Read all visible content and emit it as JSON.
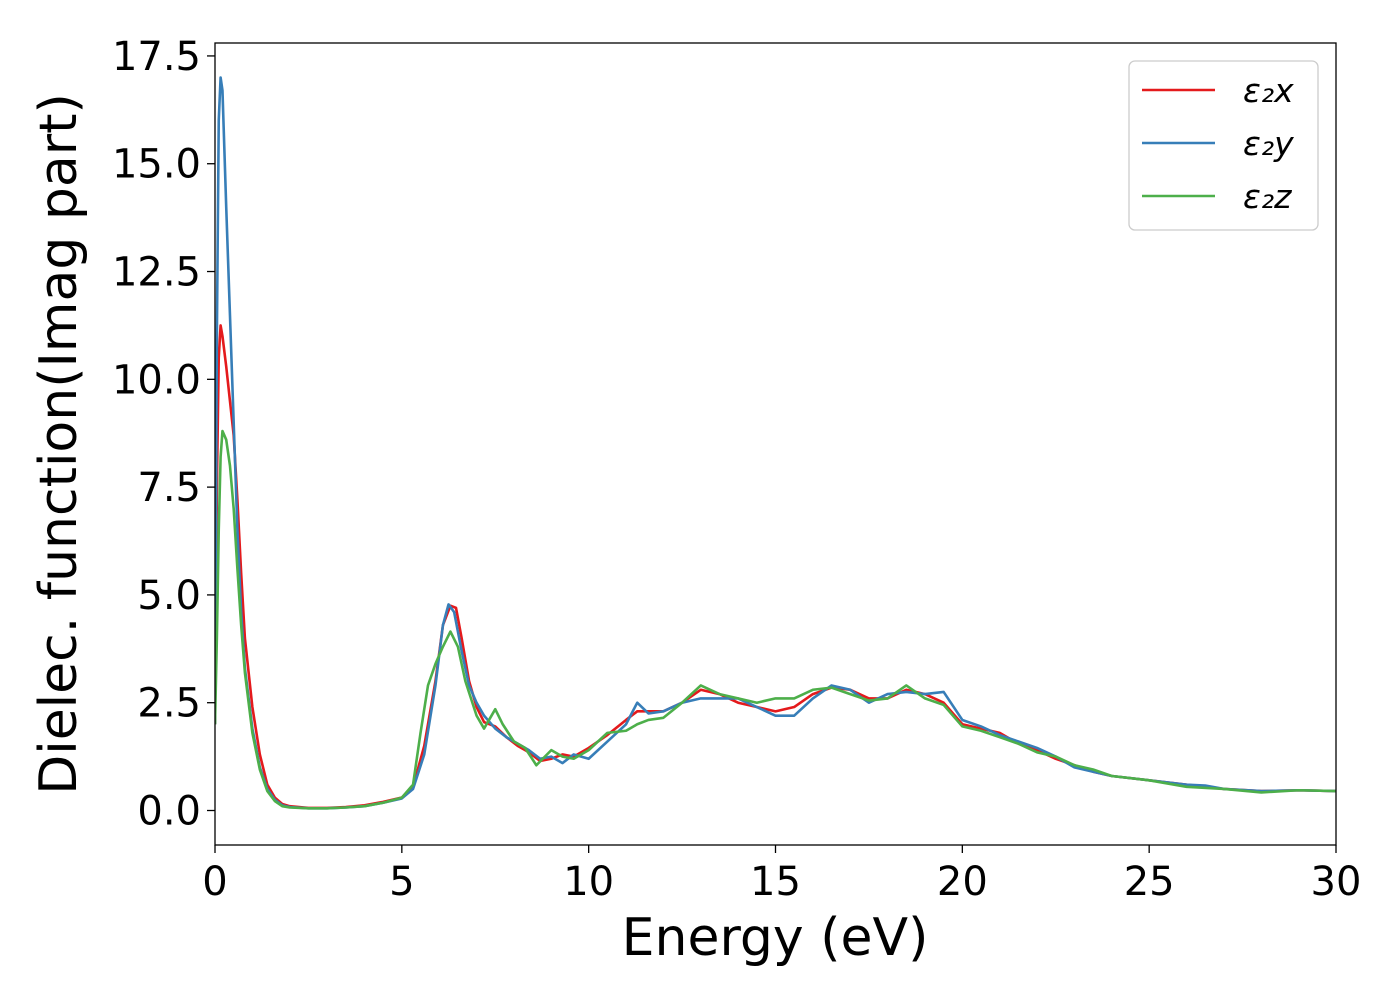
{
  "chart_data": {
    "type": "line",
    "title": "",
    "xlabel": "Energy (eV)",
    "ylabel": "Dielec. function(Imag part)",
    "xlim": [
      0,
      30
    ],
    "ylim": [
      -0.8,
      17.8
    ],
    "xticks": [
      0,
      5,
      10,
      15,
      20,
      25,
      30
    ],
    "xtick_labels": [
      "0",
      "5",
      "10",
      "15",
      "20",
      "25",
      "30"
    ],
    "yticks": [
      0,
      2.5,
      5,
      7.5,
      10,
      12.5,
      15,
      17.5
    ],
    "ytick_labels": [
      "0.0",
      "2.5",
      "5.0",
      "7.5",
      "10.0",
      "12.5",
      "15.0",
      "17.5"
    ],
    "grid": false,
    "legend_position": "top-right",
    "series": [
      {
        "name": "ε₂x",
        "color": "#e41a1c",
        "x": [
          0,
          0.05,
          0.1,
          0.15,
          0.2,
          0.3,
          0.4,
          0.5,
          0.6,
          0.7,
          0.8,
          1.0,
          1.2,
          1.4,
          1.6,
          1.8,
          2.0,
          2.5,
          3.0,
          3.5,
          4.0,
          4.5,
          5.0,
          5.3,
          5.6,
          5.9,
          6.1,
          6.3,
          6.45,
          6.6,
          6.8,
          7.0,
          7.2,
          7.5,
          7.8,
          8.1,
          8.4,
          8.7,
          9.0,
          9.3,
          9.6,
          10.0,
          10.5,
          11.0,
          11.3,
          11.6,
          12.0,
          12.5,
          13.0,
          13.5,
          14.0,
          14.5,
          15.0,
          15.5,
          16.0,
          16.5,
          17.0,
          17.5,
          18.0,
          18.5,
          19.0,
          19.5,
          20.0,
          20.5,
          21.0,
          21.5,
          22.0,
          22.5,
          23.0,
          23.5,
          24.0,
          25.0,
          26.0,
          27.0,
          28.0,
          29.0,
          30.0
        ],
        "y": [
          2.0,
          7.5,
          10.5,
          11.25,
          11.0,
          10.3,
          9.5,
          8.7,
          7.2,
          5.5,
          4.0,
          2.4,
          1.3,
          0.6,
          0.3,
          0.15,
          0.1,
          0.06,
          0.06,
          0.08,
          0.12,
          0.2,
          0.3,
          0.55,
          1.5,
          3.0,
          4.3,
          4.75,
          4.7,
          4.0,
          3.0,
          2.4,
          2.05,
          1.95,
          1.7,
          1.5,
          1.35,
          1.15,
          1.2,
          1.3,
          1.25,
          1.45,
          1.75,
          2.1,
          2.3,
          2.3,
          2.3,
          2.5,
          2.8,
          2.7,
          2.5,
          2.4,
          2.3,
          2.4,
          2.7,
          2.85,
          2.8,
          2.6,
          2.6,
          2.8,
          2.7,
          2.5,
          2.0,
          1.9,
          1.8,
          1.55,
          1.4,
          1.2,
          1.05,
          0.9,
          0.8,
          0.7,
          0.6,
          0.5,
          0.45,
          0.47,
          0.45
        ]
      },
      {
        "name": "ε₂y",
        "color": "#377eb8",
        "x": [
          0,
          0.05,
          0.1,
          0.15,
          0.2,
          0.3,
          0.4,
          0.5,
          0.6,
          0.7,
          0.8,
          1.0,
          1.2,
          1.4,
          1.6,
          1.8,
          2.0,
          2.5,
          3.0,
          3.5,
          4.0,
          4.5,
          5.0,
          5.3,
          5.6,
          5.9,
          6.1,
          6.25,
          6.4,
          6.6,
          6.8,
          7.0,
          7.2,
          7.5,
          7.8,
          8.1,
          8.4,
          8.7,
          9.0,
          9.3,
          9.6,
          10.0,
          10.5,
          11.0,
          11.3,
          11.6,
          12.0,
          12.5,
          13.0,
          13.5,
          14.0,
          14.5,
          15.0,
          15.5,
          16.0,
          16.5,
          17.0,
          17.5,
          18.0,
          18.5,
          19.0,
          19.5,
          20.0,
          20.5,
          21.0,
          21.5,
          22.0,
          22.5,
          23.0,
          23.5,
          24.0,
          25.0,
          26.0,
          26.5,
          27.0,
          28.0,
          29.0,
          30.0
        ],
        "y": [
          2.0,
          11.0,
          16.0,
          17.0,
          16.7,
          14.0,
          11.5,
          9.0,
          6.5,
          4.6,
          3.3,
          1.9,
          1.0,
          0.5,
          0.25,
          0.12,
          0.08,
          0.05,
          0.05,
          0.07,
          0.1,
          0.18,
          0.28,
          0.5,
          1.3,
          2.9,
          4.3,
          4.78,
          4.6,
          3.7,
          2.9,
          2.5,
          2.2,
          1.9,
          1.7,
          1.55,
          1.4,
          1.2,
          1.25,
          1.1,
          1.3,
          1.2,
          1.6,
          2.0,
          2.5,
          2.25,
          2.3,
          2.5,
          2.6,
          2.6,
          2.6,
          2.4,
          2.2,
          2.2,
          2.6,
          2.9,
          2.8,
          2.5,
          2.7,
          2.75,
          2.7,
          2.75,
          2.1,
          1.95,
          1.75,
          1.6,
          1.45,
          1.25,
          1.0,
          0.9,
          0.8,
          0.7,
          0.6,
          0.58,
          0.5,
          0.45,
          0.47,
          0.45
        ]
      },
      {
        "name": "ε₂z",
        "color": "#4daf4a",
        "x": [
          0,
          0.05,
          0.1,
          0.15,
          0.2,
          0.3,
          0.4,
          0.5,
          0.6,
          0.7,
          0.8,
          1.0,
          1.2,
          1.4,
          1.6,
          1.8,
          2.0,
          2.5,
          3.0,
          3.5,
          4.0,
          4.5,
          5.0,
          5.3,
          5.5,
          5.7,
          5.9,
          6.1,
          6.3,
          6.5,
          6.7,
          7.0,
          7.2,
          7.5,
          7.7,
          8.0,
          8.3,
          8.6,
          9.0,
          9.3,
          9.6,
          10.0,
          10.5,
          11.0,
          11.3,
          11.6,
          12.0,
          12.5,
          13.0,
          13.5,
          14.0,
          14.5,
          15.0,
          15.5,
          16.0,
          16.5,
          17.0,
          17.5,
          18.0,
          18.5,
          19.0,
          19.5,
          20.0,
          20.5,
          21.0,
          21.5,
          22.0,
          22.5,
          23.0,
          23.5,
          24.0,
          25.0,
          26.0,
          27.0,
          28.0,
          29.0,
          30.0
        ],
        "y": [
          2.0,
          4.0,
          6.5,
          8.2,
          8.8,
          8.6,
          8.0,
          7.0,
          5.6,
          4.3,
          3.2,
          1.8,
          0.95,
          0.45,
          0.22,
          0.1,
          0.07,
          0.05,
          0.05,
          0.07,
          0.1,
          0.18,
          0.3,
          0.6,
          1.8,
          2.9,
          3.4,
          3.8,
          4.15,
          3.8,
          3.0,
          2.2,
          1.9,
          2.35,
          2.0,
          1.6,
          1.45,
          1.05,
          1.4,
          1.25,
          1.2,
          1.4,
          1.8,
          1.85,
          2.0,
          2.1,
          2.15,
          2.5,
          2.9,
          2.7,
          2.6,
          2.5,
          2.6,
          2.6,
          2.8,
          2.85,
          2.7,
          2.55,
          2.6,
          2.9,
          2.6,
          2.45,
          1.95,
          1.85,
          1.7,
          1.55,
          1.35,
          1.25,
          1.05,
          0.95,
          0.8,
          0.7,
          0.55,
          0.5,
          0.42,
          0.47,
          0.45
        ]
      }
    ]
  }
}
